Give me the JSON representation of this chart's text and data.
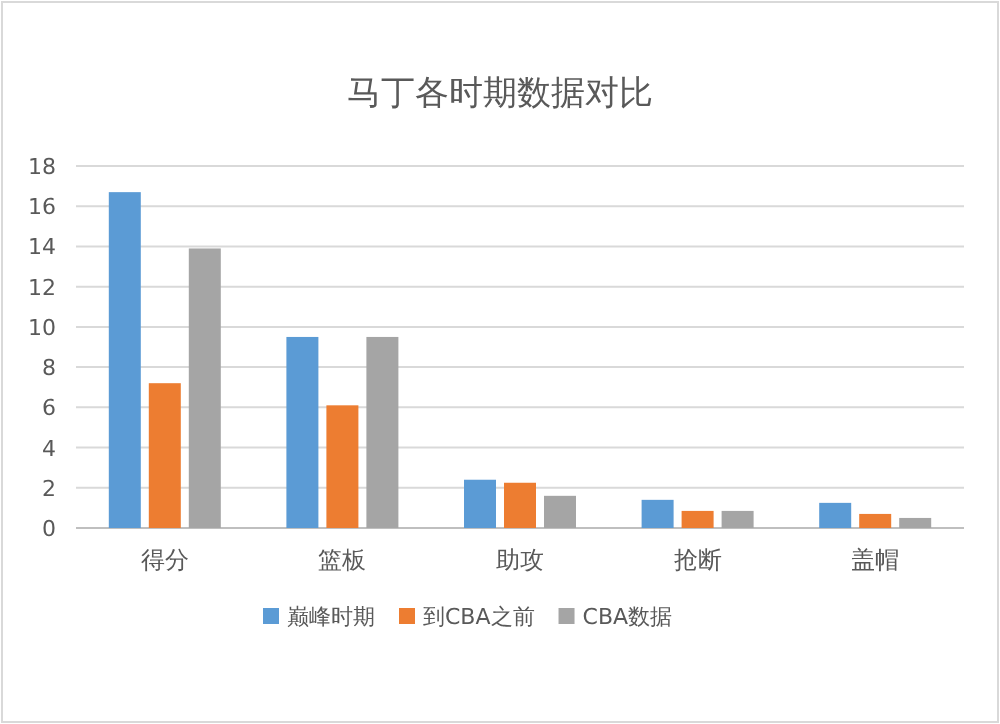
{
  "chart_data": {
    "type": "bar",
    "title": "马丁各时期数据对比",
    "categories": [
      "得分",
      "篮板",
      "助攻",
      "抢断",
      "盖帽"
    ],
    "series": [
      {
        "name": "巅峰时期",
        "color": "#5b9bd5",
        "values": [
          16.7,
          9.5,
          2.4,
          1.4,
          1.25
        ]
      },
      {
        "name": "到CBA之前",
        "color": "#ed7d31",
        "values": [
          7.2,
          6.1,
          2.25,
          0.85,
          0.7
        ]
      },
      {
        "name": "CBA数据",
        "color": "#a5a5a5",
        "values": [
          13.9,
          9.5,
          1.6,
          0.85,
          0.5
        ]
      }
    ],
    "ylim": [
      0,
      18
    ],
    "yticks": [
      0,
      2,
      4,
      6,
      8,
      10,
      12,
      14,
      16,
      18
    ],
    "grid": "y",
    "legend": "bottom"
  }
}
